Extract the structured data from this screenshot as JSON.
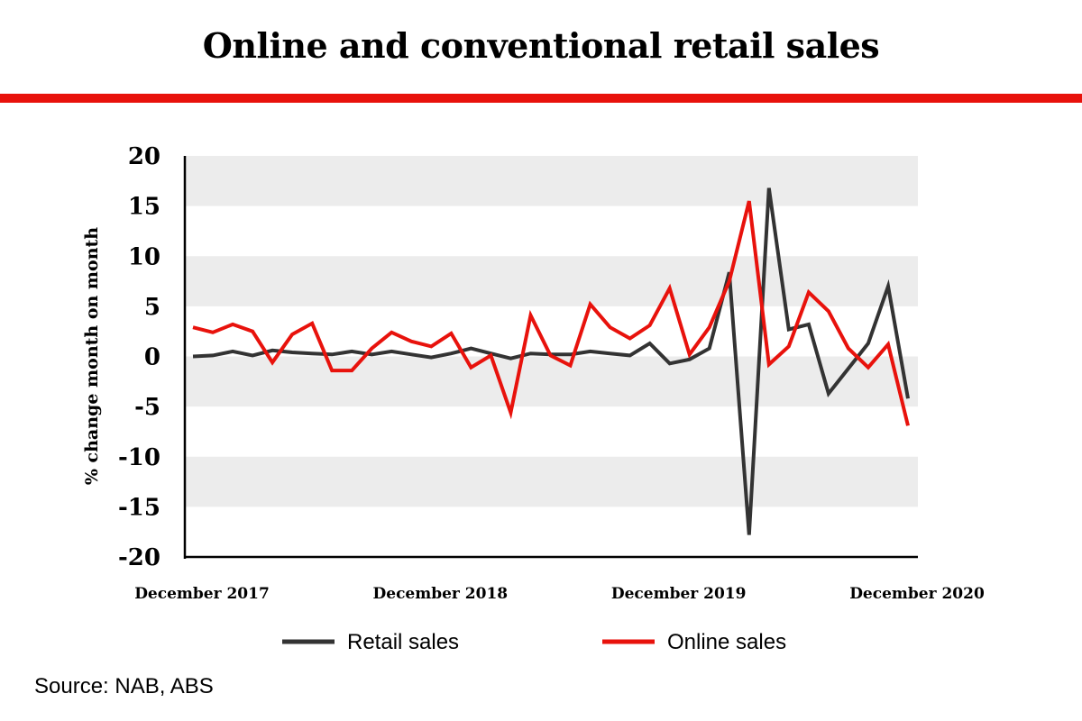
{
  "title": "Online and conventional retail sales",
  "source": "Source: NAB, ABS",
  "colors": {
    "accent": "#e8120c",
    "retail": "#333333",
    "online": "#e8120c",
    "band": "#ececec"
  },
  "chart_data": {
    "type": "line",
    "ylabel": "% change month on month",
    "xlabel": "",
    "ylim": [
      -20,
      20
    ],
    "yticks": [
      20,
      15,
      10,
      5,
      0,
      -5,
      -10,
      -15,
      -20
    ],
    "x_tick_labels": [
      {
        "label": "December 2017",
        "index": 0
      },
      {
        "label": "December 2018",
        "index": 12
      },
      {
        "label": "December 2019",
        "index": 24
      },
      {
        "label": "December 2020",
        "index": 36
      }
    ],
    "x": [
      "Dec 2017",
      "Jan 2018",
      "Feb 2018",
      "Mar 2018",
      "Apr 2018",
      "May 2018",
      "Jun 2018",
      "Jul 2018",
      "Aug 2018",
      "Sep 2018",
      "Oct 2018",
      "Nov 2018",
      "Dec 2018",
      "Jan 2019",
      "Feb 2019",
      "Mar 2019",
      "Apr 2019",
      "May 2019",
      "Jun 2019",
      "Jul 2019",
      "Aug 2019",
      "Sep 2019",
      "Oct 2019",
      "Nov 2019",
      "Dec 2019",
      "Jan 2020",
      "Feb 2020",
      "Mar 2020",
      "Apr 2020",
      "May 2020",
      "Jun 2020",
      "Jul 2020",
      "Aug 2020",
      "Sep 2020",
      "Oct 2020",
      "Nov 2020",
      "Dec 2020"
    ],
    "grid_bands": true,
    "legend_position": "bottom-center",
    "series": [
      {
        "name": "Retail sales",
        "color": "#333333",
        "values": [
          0.0,
          0.1,
          0.5,
          0.1,
          0.6,
          0.4,
          0.3,
          0.2,
          0.5,
          0.2,
          0.5,
          0.2,
          -0.1,
          0.3,
          0.8,
          0.3,
          -0.2,
          0.3,
          0.2,
          0.2,
          0.5,
          0.3,
          0.1,
          1.3,
          -0.7,
          -0.3,
          0.8,
          8.4,
          -17.8,
          16.8,
          2.7,
          3.2,
          -3.7,
          -1.2,
          1.3,
          7.0,
          -4.2
        ]
      },
      {
        "name": "Online sales",
        "color": "#e8120c",
        "values": [
          2.9,
          2.4,
          3.2,
          2.5,
          -0.6,
          2.2,
          3.3,
          -1.4,
          -1.4,
          0.8,
          2.4,
          1.5,
          1.0,
          2.3,
          -1.1,
          0.1,
          -5.6,
          4.1,
          0.1,
          -0.9,
          5.2,
          2.9,
          1.8,
          3.1,
          6.8,
          0.2,
          2.9,
          7.5,
          15.5,
          -0.8,
          1.0,
          6.4,
          4.5,
          0.8,
          -1.1,
          1.2,
          -6.9
        ]
      }
    ]
  }
}
